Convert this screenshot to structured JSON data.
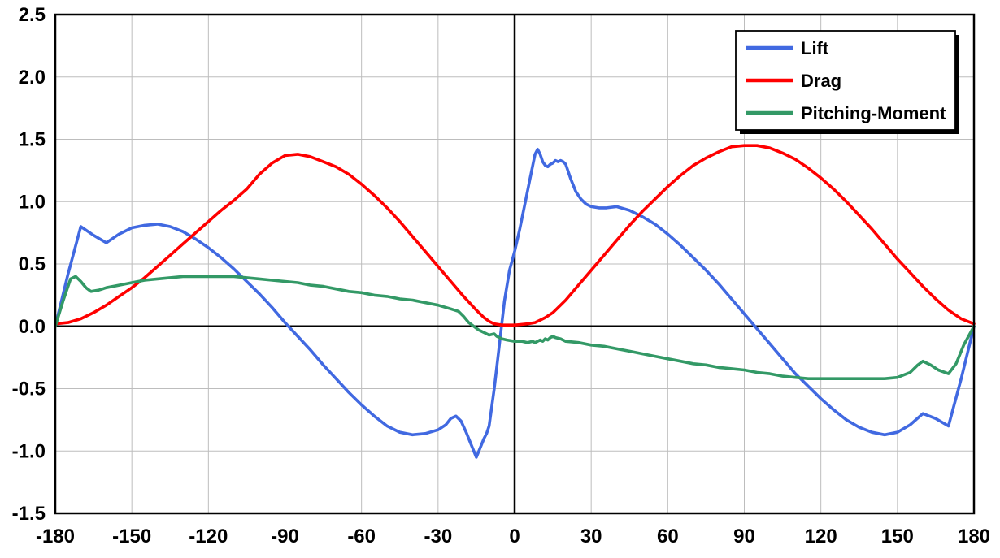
{
  "chart_data": {
    "type": "line",
    "title": "",
    "xlabel": "",
    "ylabel": "",
    "xlim": [
      -180,
      180
    ],
    "ylim": [
      -1.5,
      2.5
    ],
    "x_ticks": [
      -180,
      -150,
      -120,
      -90,
      -60,
      -30,
      0,
      30,
      60,
      90,
      120,
      150,
      180
    ],
    "y_ticks": [
      -1.5,
      -1.0,
      -0.5,
      0.0,
      0.5,
      1.0,
      1.5,
      2.0,
      2.5
    ],
    "grid": true,
    "grid_color": "#bdbdbd",
    "axis_color": "#000000",
    "background": "#ffffff",
    "legend_position": "top-right",
    "legend": [
      "Lift",
      "Drag",
      "Pitching-Moment"
    ],
    "series": [
      {
        "name": "Lift",
        "color": "#4169E1",
        "points": [
          [
            -180,
            0.0
          ],
          [
            -175,
            0.42
          ],
          [
            -170,
            0.8
          ],
          [
            -165,
            0.73
          ],
          [
            -160,
            0.67
          ],
          [
            -155,
            0.74
          ],
          [
            -150,
            0.79
          ],
          [
            -145,
            0.81
          ],
          [
            -140,
            0.82
          ],
          [
            -135,
            0.8
          ],
          [
            -130,
            0.76
          ],
          [
            -125,
            0.7
          ],
          [
            -120,
            0.63
          ],
          [
            -115,
            0.55
          ],
          [
            -110,
            0.46
          ],
          [
            -105,
            0.36
          ],
          [
            -100,
            0.26
          ],
          [
            -95,
            0.15
          ],
          [
            -90,
            0.03
          ],
          [
            -85,
            -0.08
          ],
          [
            -80,
            -0.19
          ],
          [
            -75,
            -0.31
          ],
          [
            -70,
            -0.42
          ],
          [
            -65,
            -0.53
          ],
          [
            -60,
            -0.63
          ],
          [
            -55,
            -0.72
          ],
          [
            -50,
            -0.8
          ],
          [
            -45,
            -0.85
          ],
          [
            -40,
            -0.87
          ],
          [
            -35,
            -0.86
          ],
          [
            -30,
            -0.83
          ],
          [
            -27,
            -0.79
          ],
          [
            -25,
            -0.74
          ],
          [
            -23,
            -0.72
          ],
          [
            -21,
            -0.76
          ],
          [
            -19,
            -0.85
          ],
          [
            -17,
            -0.95
          ],
          [
            -15,
            -1.05
          ],
          [
            -13,
            -0.95
          ],
          [
            -12,
            -0.9
          ],
          [
            -11,
            -0.86
          ],
          [
            -10,
            -0.8
          ],
          [
            -8,
            -0.5
          ],
          [
            -6,
            -0.15
          ],
          [
            -4,
            0.2
          ],
          [
            -2,
            0.45
          ],
          [
            0,
            0.6
          ],
          [
            2,
            0.78
          ],
          [
            4,
            0.98
          ],
          [
            6,
            1.18
          ],
          [
            8,
            1.38
          ],
          [
            9,
            1.42
          ],
          [
            10,
            1.38
          ],
          [
            11,
            1.32
          ],
          [
            12,
            1.29
          ],
          [
            13,
            1.28
          ],
          [
            14,
            1.3
          ],
          [
            15,
            1.31
          ],
          [
            16,
            1.33
          ],
          [
            17,
            1.32
          ],
          [
            18,
            1.33
          ],
          [
            19,
            1.32
          ],
          [
            20,
            1.3
          ],
          [
            22,
            1.18
          ],
          [
            24,
            1.08
          ],
          [
            26,
            1.02
          ],
          [
            28,
            0.98
          ],
          [
            30,
            0.96
          ],
          [
            33,
            0.95
          ],
          [
            36,
            0.95
          ],
          [
            40,
            0.96
          ],
          [
            45,
            0.93
          ],
          [
            50,
            0.88
          ],
          [
            55,
            0.82
          ],
          [
            60,
            0.74
          ],
          [
            65,
            0.65
          ],
          [
            70,
            0.55
          ],
          [
            75,
            0.45
          ],
          [
            80,
            0.34
          ],
          [
            85,
            0.22
          ],
          [
            90,
            0.1
          ],
          [
            95,
            -0.02
          ],
          [
            100,
            -0.14
          ],
          [
            105,
            -0.26
          ],
          [
            110,
            -0.38
          ],
          [
            115,
            -0.48
          ],
          [
            120,
            -0.58
          ],
          [
            125,
            -0.67
          ],
          [
            130,
            -0.75
          ],
          [
            135,
            -0.81
          ],
          [
            140,
            -0.85
          ],
          [
            145,
            -0.87
          ],
          [
            150,
            -0.85
          ],
          [
            155,
            -0.79
          ],
          [
            160,
            -0.7
          ],
          [
            165,
            -0.74
          ],
          [
            170,
            -0.8
          ],
          [
            175,
            -0.42
          ],
          [
            180,
            0.0
          ]
        ]
      },
      {
        "name": "Drag",
        "color": "#FF0000",
        "points": [
          [
            -180,
            0.02
          ],
          [
            -175,
            0.03
          ],
          [
            -170,
            0.06
          ],
          [
            -165,
            0.11
          ],
          [
            -160,
            0.17
          ],
          [
            -155,
            0.24
          ],
          [
            -150,
            0.31
          ],
          [
            -145,
            0.39
          ],
          [
            -140,
            0.48
          ],
          [
            -135,
            0.57
          ],
          [
            -130,
            0.66
          ],
          [
            -125,
            0.75
          ],
          [
            -120,
            0.84
          ],
          [
            -115,
            0.93
          ],
          [
            -110,
            1.01
          ],
          [
            -105,
            1.1
          ],
          [
            -100,
            1.22
          ],
          [
            -95,
            1.31
          ],
          [
            -90,
            1.37
          ],
          [
            -85,
            1.38
          ],
          [
            -80,
            1.36
          ],
          [
            -75,
            1.32
          ],
          [
            -70,
            1.28
          ],
          [
            -65,
            1.22
          ],
          [
            -60,
            1.14
          ],
          [
            -55,
            1.05
          ],
          [
            -50,
            0.95
          ],
          [
            -45,
            0.84
          ],
          [
            -40,
            0.72
          ],
          [
            -35,
            0.6
          ],
          [
            -30,
            0.48
          ],
          [
            -25,
            0.36
          ],
          [
            -20,
            0.24
          ],
          [
            -15,
            0.13
          ],
          [
            -12,
            0.07
          ],
          [
            -10,
            0.04
          ],
          [
            -8,
            0.02
          ],
          [
            -5,
            0.01
          ],
          [
            0,
            0.01
          ],
          [
            5,
            0.02
          ],
          [
            8,
            0.03
          ],
          [
            10,
            0.05
          ],
          [
            12,
            0.07
          ],
          [
            15,
            0.11
          ],
          [
            20,
            0.21
          ],
          [
            25,
            0.33
          ],
          [
            30,
            0.45
          ],
          [
            35,
            0.57
          ],
          [
            40,
            0.69
          ],
          [
            45,
            0.81
          ],
          [
            50,
            0.92
          ],
          [
            55,
            1.02
          ],
          [
            60,
            1.12
          ],
          [
            65,
            1.21
          ],
          [
            70,
            1.29
          ],
          [
            75,
            1.35
          ],
          [
            80,
            1.4
          ],
          [
            85,
            1.44
          ],
          [
            90,
            1.45
          ],
          [
            95,
            1.45
          ],
          [
            100,
            1.43
          ],
          [
            105,
            1.39
          ],
          [
            110,
            1.34
          ],
          [
            115,
            1.27
          ],
          [
            120,
            1.19
          ],
          [
            125,
            1.1
          ],
          [
            130,
            1.0
          ],
          [
            135,
            0.89
          ],
          [
            140,
            0.78
          ],
          [
            145,
            0.66
          ],
          [
            150,
            0.54
          ],
          [
            155,
            0.43
          ],
          [
            160,
            0.32
          ],
          [
            165,
            0.22
          ],
          [
            170,
            0.13
          ],
          [
            175,
            0.06
          ],
          [
            180,
            0.02
          ]
        ]
      },
      {
        "name": "Pitching-Moment",
        "color": "#339966",
        "points": [
          [
            -180,
            0.0
          ],
          [
            -177,
            0.2
          ],
          [
            -174,
            0.38
          ],
          [
            -172,
            0.4
          ],
          [
            -170,
            0.36
          ],
          [
            -168,
            0.31
          ],
          [
            -166,
            0.28
          ],
          [
            -163,
            0.29
          ],
          [
            -160,
            0.31
          ],
          [
            -155,
            0.33
          ],
          [
            -150,
            0.35
          ],
          [
            -145,
            0.37
          ],
          [
            -140,
            0.38
          ],
          [
            -135,
            0.39
          ],
          [
            -130,
            0.4
          ],
          [
            -125,
            0.4
          ],
          [
            -120,
            0.4
          ],
          [
            -115,
            0.4
          ],
          [
            -110,
            0.4
          ],
          [
            -105,
            0.39
          ],
          [
            -100,
            0.38
          ],
          [
            -95,
            0.37
          ],
          [
            -90,
            0.36
          ],
          [
            -85,
            0.35
          ],
          [
            -80,
            0.33
          ],
          [
            -75,
            0.32
          ],
          [
            -70,
            0.3
          ],
          [
            -65,
            0.28
          ],
          [
            -60,
            0.27
          ],
          [
            -55,
            0.25
          ],
          [
            -50,
            0.24
          ],
          [
            -45,
            0.22
          ],
          [
            -40,
            0.21
          ],
          [
            -35,
            0.19
          ],
          [
            -30,
            0.17
          ],
          [
            -25,
            0.14
          ],
          [
            -22,
            0.12
          ],
          [
            -20,
            0.08
          ],
          [
            -18,
            0.03
          ],
          [
            -16,
            0.0
          ],
          [
            -14,
            -0.03
          ],
          [
            -12,
            -0.05
          ],
          [
            -10,
            -0.07
          ],
          [
            -8,
            -0.06
          ],
          [
            -7,
            -0.08
          ],
          [
            -5,
            -0.1
          ],
          [
            -3,
            -0.11
          ],
          [
            0,
            -0.12
          ],
          [
            3,
            -0.12
          ],
          [
            5,
            -0.13
          ],
          [
            7,
            -0.12
          ],
          [
            8,
            -0.13
          ],
          [
            9,
            -0.12
          ],
          [
            10,
            -0.11
          ],
          [
            11,
            -0.12
          ],
          [
            12,
            -0.1
          ],
          [
            13,
            -0.11
          ],
          [
            14,
            -0.09
          ],
          [
            15,
            -0.08
          ],
          [
            16,
            -0.09
          ],
          [
            18,
            -0.1
          ],
          [
            20,
            -0.12
          ],
          [
            25,
            -0.13
          ],
          [
            30,
            -0.15
          ],
          [
            35,
            -0.16
          ],
          [
            40,
            -0.18
          ],
          [
            45,
            -0.2
          ],
          [
            50,
            -0.22
          ],
          [
            55,
            -0.24
          ],
          [
            60,
            -0.26
          ],
          [
            65,
            -0.28
          ],
          [
            70,
            -0.3
          ],
          [
            75,
            -0.31
          ],
          [
            80,
            -0.33
          ],
          [
            85,
            -0.34
          ],
          [
            90,
            -0.35
          ],
          [
            95,
            -0.37
          ],
          [
            100,
            -0.38
          ],
          [
            105,
            -0.4
          ],
          [
            110,
            -0.41
          ],
          [
            115,
            -0.42
          ],
          [
            120,
            -0.42
          ],
          [
            125,
            -0.42
          ],
          [
            130,
            -0.42
          ],
          [
            135,
            -0.42
          ],
          [
            140,
            -0.42
          ],
          [
            145,
            -0.42
          ],
          [
            150,
            -0.41
          ],
          [
            155,
            -0.37
          ],
          [
            158,
            -0.31
          ],
          [
            160,
            -0.28
          ],
          [
            163,
            -0.31
          ],
          [
            166,
            -0.35
          ],
          [
            170,
            -0.38
          ],
          [
            173,
            -0.3
          ],
          [
            176,
            -0.15
          ],
          [
            180,
            0.0
          ]
        ]
      }
    ]
  }
}
